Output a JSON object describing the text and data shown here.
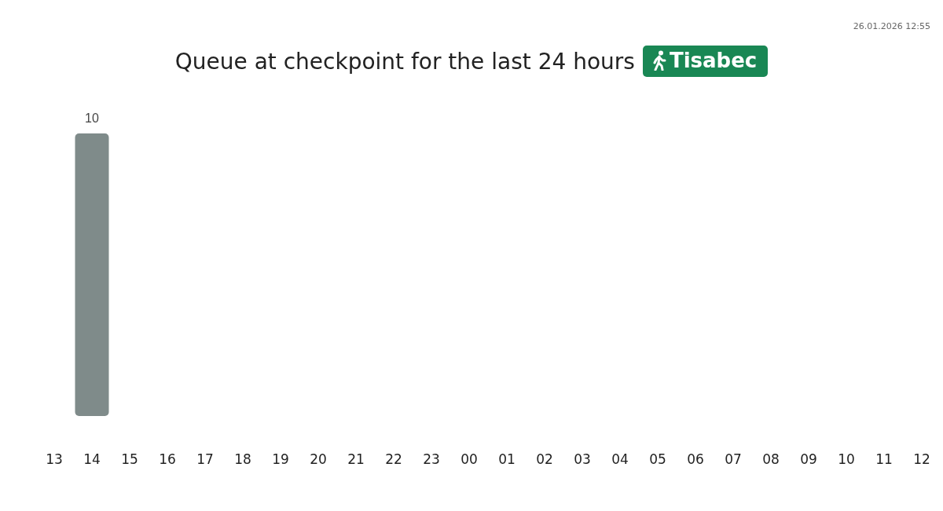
{
  "chart_data": {
    "type": "bar",
    "title": "Queue at checkpoint for the last 24 hours",
    "subtitle": "Tisabec",
    "annotations": [
      "26.01.2026 12:55"
    ],
    "categories": [
      "13",
      "14",
      "15",
      "16",
      "17",
      "18",
      "19",
      "20",
      "21",
      "22",
      "23",
      "00",
      "01",
      "02",
      "03",
      "04",
      "05",
      "06",
      "07",
      "08",
      "09",
      "10",
      "11",
      "12"
    ],
    "values": [
      0,
      10,
      0,
      0,
      0,
      0,
      0,
      0,
      0,
      0,
      0,
      0,
      0,
      0,
      0,
      0,
      0,
      0,
      0,
      0,
      0,
      0,
      0,
      0
    ],
    "value_labels": [
      null,
      "10",
      null,
      null,
      null,
      null,
      null,
      null,
      null,
      null,
      null,
      null,
      null,
      null,
      null,
      null,
      null,
      null,
      null,
      null,
      null,
      null,
      null,
      null
    ],
    "color": "#7f8b8a",
    "grid": false
  }
}
